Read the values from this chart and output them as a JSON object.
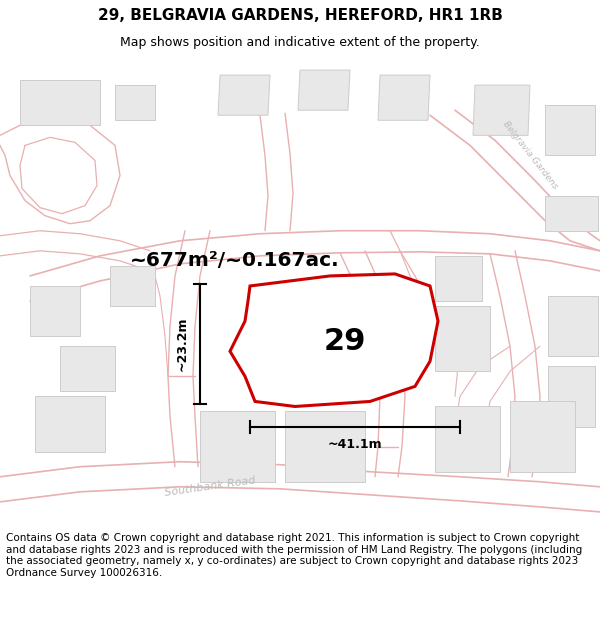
{
  "title": "29, BELGRAVIA GARDENS, HEREFORD, HR1 1RB",
  "subtitle": "Map shows position and indicative extent of the property.",
  "footer": "Contains OS data © Crown copyright and database right 2021. This information is subject to Crown copyright and database rights 2023 and is reproduced with the permission of HM Land Registry. The polygons (including the associated geometry, namely x, y co-ordinates) are subject to Crown copyright and database rights 2023 Ordnance Survey 100026316.",
  "area_label": "~677m²/~0.167ac.",
  "number_label": "29",
  "width_label": "~41.1m",
  "height_label": "~23.2m",
  "map_bg": "#ffffff",
  "plot_color": "#cc0000",
  "road_color": "#e8b0b0",
  "road_label_color": "#bbbbbb",
  "building_fill": "#e8e8e8",
  "building_edge": "#cccccc",
  "title_fontsize": 11,
  "subtitle_fontsize": 9,
  "footer_fontsize": 7.5,
  "figsize": [
    6.0,
    6.25
  ],
  "dpi": 100
}
